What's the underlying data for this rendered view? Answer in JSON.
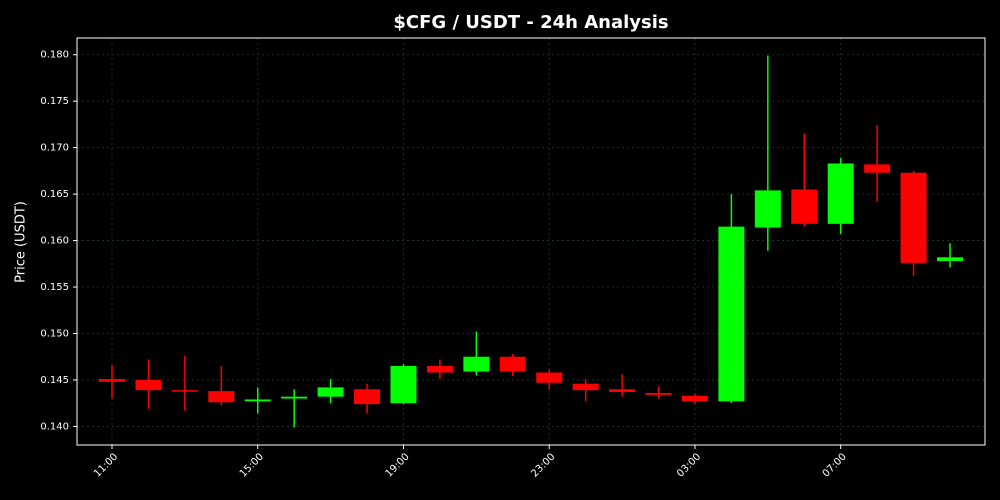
{
  "chart_data": {
    "type": "candlestick",
    "title": "$CFG / USDT - 24h Analysis",
    "y_label": "Price (USDT)",
    "categories": [
      "11:00",
      null,
      null,
      null,
      "15:00",
      null,
      null,
      null,
      "19:00",
      null,
      null,
      null,
      "23:00",
      null,
      null,
      null,
      "03:00",
      null,
      null,
      null,
      "07:00",
      null,
      null,
      null
    ],
    "open": [
      0.1451,
      0.145,
      0.1439,
      0.1438,
      0.1427,
      0.143,
      0.1432,
      0.144,
      0.1425,
      0.1465,
      0.1459,
      0.1475,
      0.1458,
      0.1446,
      0.144,
      0.1436,
      0.1433,
      0.1427,
      0.1614,
      0.1655,
      0.1618,
      0.1682,
      0.1673,
      0.1578
    ],
    "high": [
      0.1466,
      0.1472,
      0.1476,
      0.1465,
      0.1442,
      0.144,
      0.1451,
      0.1446,
      0.1467,
      0.1472,
      0.1502,
      0.1478,
      0.1461,
      0.1451,
      0.1456,
      0.1443,
      0.1435,
      0.165,
      0.1799,
      0.1715,
      0.1689,
      0.1724,
      0.1675,
      0.1597
    ],
    "low": [
      0.143,
      0.1419,
      0.1417,
      0.1423,
      0.1414,
      0.1399,
      0.1425,
      0.1414,
      0.1424,
      0.1451,
      0.1455,
      0.1454,
      0.144,
      0.1427,
      0.1432,
      0.143,
      0.1424,
      0.1425,
      0.1589,
      0.1615,
      0.1607,
      0.1642,
      0.1562,
      0.1571
    ],
    "close": [
      0.1448,
      0.1439,
      0.1438,
      0.1426,
      0.1429,
      0.1432,
      0.1442,
      0.1424,
      0.1465,
      0.1458,
      0.1475,
      0.1459,
      0.1447,
      0.1439,
      0.1437,
      0.1434,
      0.1427,
      0.1615,
      0.1654,
      0.1618,
      0.1683,
      0.1673,
      0.1576,
      0.1582
    ],
    "up_color": "#00ff00",
    "down_color": "#ff0000",
    "ylim": [
      0.138,
      0.1818
    ],
    "yticks": [
      {
        "value": 0.14,
        "label": "0.140"
      },
      0.145,
      {
        "value": 0.15,
        "label": "0.150"
      },
      0.155,
      {
        "value": 0.16,
        "label": "0.160"
      },
      0.165,
      {
        "value": 0.17,
        "label": "0.170"
      },
      0.175,
      {
        "value": 0.18,
        "label": "0.180"
      }
    ],
    "grid": true
  }
}
